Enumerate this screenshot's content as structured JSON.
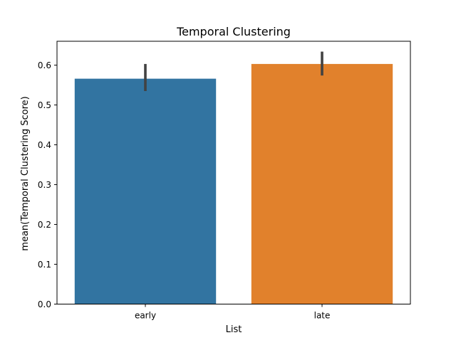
{
  "chart_data": {
    "type": "bar",
    "title": "Temporal Clustering",
    "xlabel": "List",
    "ylabel": "mean(Temporal Clustering Score)",
    "categories": [
      "early",
      "late"
    ],
    "values": [
      0.566,
      0.603
    ],
    "error_low": [
      0.535,
      0.574
    ],
    "error_high": [
      0.603,
      0.634
    ],
    "colors": [
      "#3274a1",
      "#e1812c"
    ],
    "errorbar_color": "#424242",
    "ylim": [
      0,
      0.66
    ],
    "yticks": [
      0.0,
      0.1,
      0.2,
      0.3,
      0.4,
      0.5,
      0.6
    ],
    "ytick_labels": [
      "0.0",
      "0.1",
      "0.2",
      "0.3",
      "0.4",
      "0.5",
      "0.6"
    ],
    "grid": false,
    "legend": false
  }
}
